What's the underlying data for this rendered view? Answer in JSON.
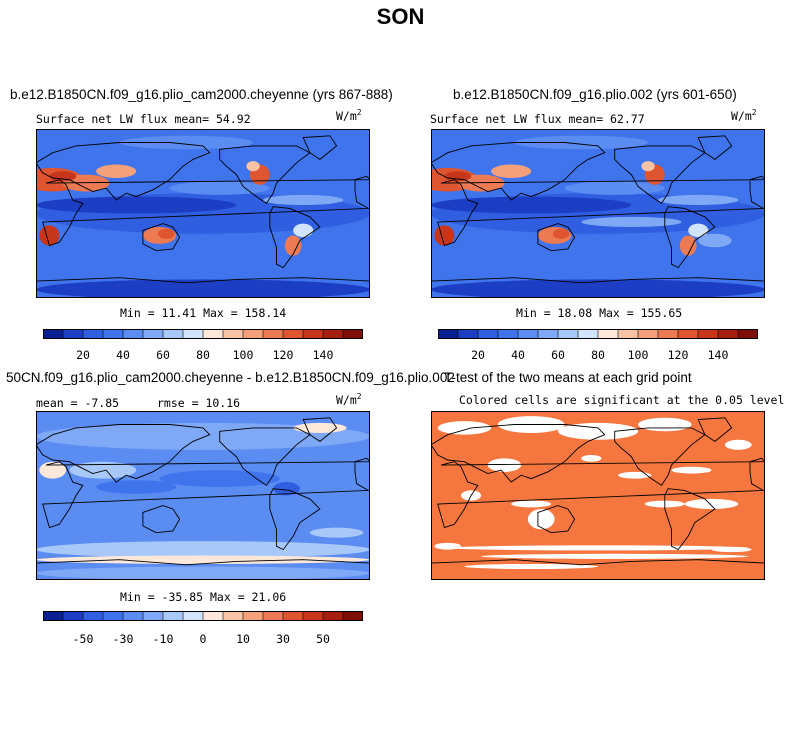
{
  "figure": {
    "title": "SON"
  },
  "chart_data": [
    {
      "type": "heatmap",
      "title": "b.e12.B1850CN.f09_g16.plio_cam2000.cheyenne (yrs 867-888)",
      "subtitle": "Surface net LW flux mean=  54.92",
      "units": "W/m",
      "units_exp": "2",
      "stats": "Min =  11.41 Max = 158.14",
      "colorbar": {
        "colors": [
          "#0a1f8f",
          "#1c3ec4",
          "#2f5ee0",
          "#3f74ec",
          "#5a8cf2",
          "#7fa9f6",
          "#a9c8fa",
          "#d2e3fc",
          "#fde8da",
          "#f9c4a6",
          "#f4a07a",
          "#ec7a52",
          "#de5530",
          "#c7361a",
          "#a51f10",
          "#800e08"
        ],
        "ticks": [
          "20",
          "40",
          "60",
          "80",
          "100",
          "120",
          "140"
        ]
      }
    },
    {
      "type": "heatmap",
      "title": "b.e12.B1850CN.f09_g16.plio.002 (yrs 601-650)",
      "subtitle": "Surface net LW flux mean=  62.77",
      "units": "W/m",
      "units_exp": "2",
      "stats": "Min =  18.08 Max = 155.65",
      "colorbar": {
        "colors": [
          "#0a1f8f",
          "#1c3ec4",
          "#2f5ee0",
          "#3f74ec",
          "#5a8cf2",
          "#7fa9f6",
          "#a9c8fa",
          "#d2e3fc",
          "#fde8da",
          "#f9c4a6",
          "#f4a07a",
          "#ec7a52",
          "#de5530",
          "#c7361a",
          "#a51f10",
          "#800e08"
        ],
        "ticks": [
          "20",
          "40",
          "60",
          "80",
          "100",
          "120",
          "140"
        ]
      }
    },
    {
      "type": "heatmap",
      "title": "50CN.f09_g16.plio_cam2000.cheyenne - b.e12.B1850CN.f09_g16.plio.002",
      "subtitle_mean": "mean =  -7.85",
      "subtitle_rmse": "rmse =  10.16",
      "units": "W/m",
      "units_exp": "2",
      "stats": "Min = -35.85 Max =  21.06",
      "colorbar": {
        "colors": [
          "#0a1f8f",
          "#1c3ec4",
          "#2f5ee0",
          "#3f74ec",
          "#5a8cf2",
          "#7fa9f6",
          "#a9c8fa",
          "#d2e3fc",
          "#fde8da",
          "#f9c4a6",
          "#f4a07a",
          "#ec7a52",
          "#de5530",
          "#c7361a",
          "#a51f10",
          "#800e08"
        ],
        "ticks": [
          "-50",
          "-30",
          "-10",
          "0",
          "10",
          "30",
          "50"
        ]
      }
    },
    {
      "type": "heatmap",
      "title": "T-test of the two means at each grid point",
      "subtitle": "Colored cells are significant at the 0.05 level",
      "significant_color": "#f5773f"
    }
  ]
}
